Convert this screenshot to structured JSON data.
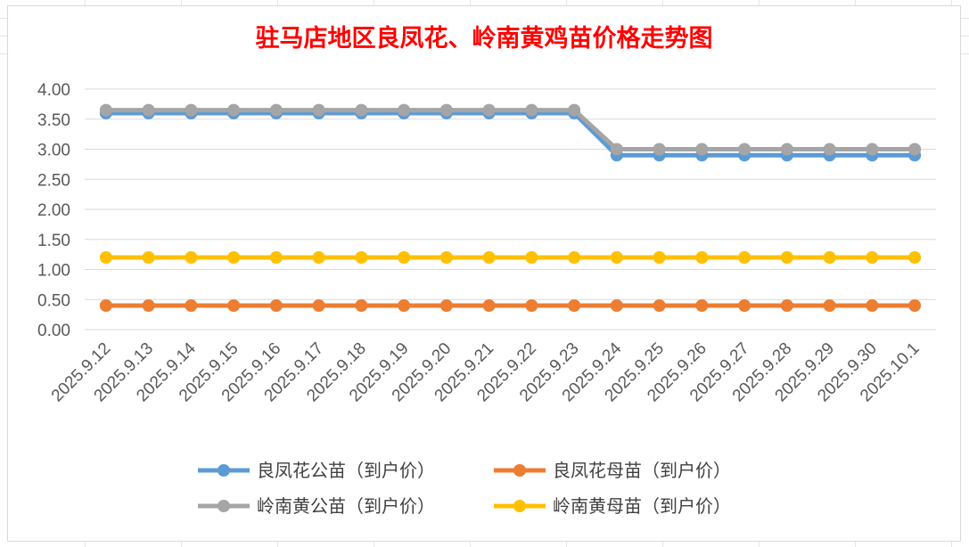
{
  "chart_data": {
    "type": "line",
    "title": "驻马店地区良凤花、岭南黄鸡苗价格走势图",
    "xlabel": "",
    "ylabel": "",
    "ylim": [
      0,
      4
    ],
    "yticks": [
      "0.00",
      "0.50",
      "1.00",
      "1.50",
      "2.00",
      "2.50",
      "3.00",
      "3.50",
      "4.00"
    ],
    "grid": true,
    "legend_position": "bottom",
    "categories": [
      "2025.9.12",
      "2025.9.13",
      "2025.9.14",
      "2025.9.15",
      "2025.9.16",
      "2025.9.17",
      "2025.9.18",
      "2025.9.19",
      "2025.9.20",
      "2025.9.21",
      "2025.9.22",
      "2025.9.23",
      "2025.9.24",
      "2025.9.25",
      "2025.9.26",
      "2025.9.27",
      "2025.9.28",
      "2025.9.29",
      "2025.9.30",
      "2025.10.1"
    ],
    "series": [
      {
        "name": "良凤花公苗（到户价）",
        "color": "#5b9bd5",
        "values": [
          3.6,
          3.6,
          3.6,
          3.6,
          3.6,
          3.6,
          3.6,
          3.6,
          3.6,
          3.6,
          3.6,
          3.6,
          2.9,
          2.9,
          2.9,
          2.9,
          2.9,
          2.9,
          2.9,
          2.9
        ]
      },
      {
        "name": "良凤花母苗（到户价）",
        "color": "#ed7d31",
        "values": [
          0.4,
          0.4,
          0.4,
          0.4,
          0.4,
          0.4,
          0.4,
          0.4,
          0.4,
          0.4,
          0.4,
          0.4,
          0.4,
          0.4,
          0.4,
          0.4,
          0.4,
          0.4,
          0.4,
          0.4
        ]
      },
      {
        "name": "岭南黄公苗（到户价）",
        "color": "#a5a5a5",
        "values": [
          3.65,
          3.65,
          3.65,
          3.65,
          3.65,
          3.65,
          3.65,
          3.65,
          3.65,
          3.65,
          3.65,
          3.65,
          3.0,
          3.0,
          3.0,
          3.0,
          3.0,
          3.0,
          3.0,
          3.0
        ]
      },
      {
        "name": "岭南黄母苗（到户价）",
        "color": "#ffc000",
        "values": [
          1.2,
          1.2,
          1.2,
          1.2,
          1.2,
          1.2,
          1.2,
          1.2,
          1.2,
          1.2,
          1.2,
          1.2,
          1.2,
          1.2,
          1.2,
          1.2,
          1.2,
          1.2,
          1.2,
          1.2
        ]
      }
    ]
  }
}
